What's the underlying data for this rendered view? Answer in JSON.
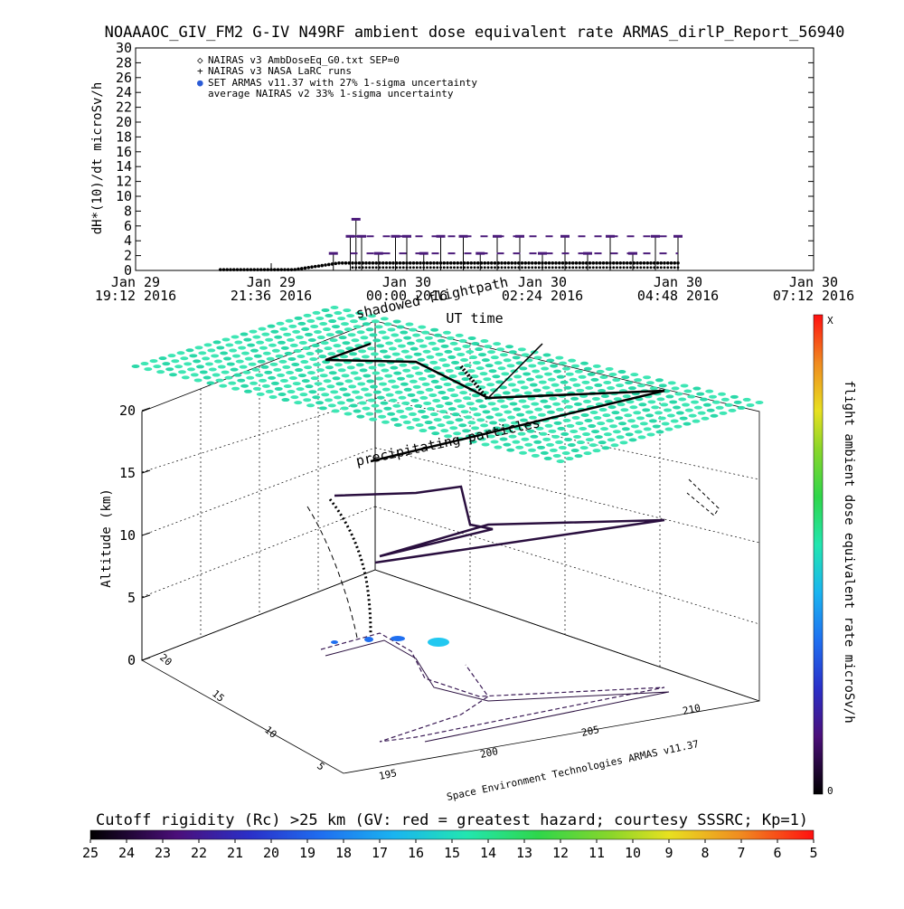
{
  "header": {
    "title": "NOAAAOC_GIV_FM2 G-IV   N49RF  ambient dose equivalent rate ARMAS_dirlP_Report_56940"
  },
  "chart_data": [
    {
      "type": "scatter",
      "title": "NOAAAOC_GIV_FM2 G-IV   N49RF  ambient dose equivalent rate ARMAS_dirlP_Report_56940",
      "ylabel": "dH*(10)/dt microSv/h",
      "xlabel": "UT time",
      "ylim": [
        0,
        30
      ],
      "yticks": [
        "0",
        "2",
        "4",
        "6",
        "8",
        "10",
        "12",
        "14",
        "16",
        "18",
        "20",
        "22",
        "24",
        "26",
        "28",
        "30"
      ],
      "xticks": [
        {
          "line1": "Jan 29",
          "line2": "19:12 2016"
        },
        {
          "line1": "Jan 29",
          "line2": "21:36 2016"
        },
        {
          "line1": "Jan 30",
          "line2": "00:00 2016"
        },
        {
          "line1": "Jan 30",
          "line2": "02:24 2016"
        },
        {
          "line1": "Jan 30",
          "line2": "04:48 2016"
        },
        {
          "line1": "Jan 30",
          "line2": "07:12 2016"
        }
      ],
      "xlim_hours": [
        19.2,
        31.2
      ],
      "legend": [
        {
          "symbol": "◇",
          "label": "NAIRAS v3 AmbDoseEq_G0.txt SEP=0"
        },
        {
          "symbol": "+",
          "label": "NAIRAS v3 NASA LaRC runs"
        },
        {
          "symbol": "●",
          "label": "SET ARMAS v11.37 with 27% 1-sigma uncertainty",
          "color": "#2b5bd6"
        },
        {
          "symbol": "",
          "label": "average NAIRAS v2 33% 1-sigma uncertainty"
        }
      ],
      "legend_position": "top-left",
      "series": [
        {
          "name": "NAIRAS v3 AmbDoseEq_G0.txt SEP=0",
          "x_hours": [
            20.7,
            21.5,
            22.2,
            22.6,
            23.0,
            24.0,
            25.0,
            26.0,
            27.0,
            28.0,
            28.8
          ],
          "values": [
            0.1,
            0.2,
            0.3,
            0.9,
            1.0,
            1.0,
            1.0,
            1.0,
            1.0,
            1.0,
            1.0
          ]
        },
        {
          "name": "SET ARMAS v11.37 with 27% 1-sigma uncertainty",
          "x_hours": [
            22.7,
            23.0,
            23.1,
            23.2,
            23.5,
            23.8,
            24.0,
            24.3,
            24.6,
            25.0,
            25.3,
            25.6,
            26.0,
            26.4,
            26.8,
            27.2,
            27.6,
            28.0,
            28.4,
            28.8
          ],
          "values": [
            2.3,
            4.6,
            6.9,
            4.6,
            2.3,
            4.6,
            4.6,
            2.3,
            4.6,
            4.6,
            2.3,
            4.6,
            4.6,
            2.3,
            4.6,
            2.3,
            4.6,
            2.3,
            4.6,
            4.6
          ]
        }
      ]
    },
    {
      "type": "scatter",
      "title": "",
      "ylabel": "Altitude (km)",
      "zlim": [
        0,
        20
      ],
      "zticks": [
        "0",
        "5",
        "10",
        "15",
        "20"
      ],
      "lat_ticks": [
        "5",
        "10",
        "15",
        "20"
      ],
      "lon_ticks": [
        "195",
        "200",
        "205",
        "210"
      ],
      "annotations": [
        "shadowed flightpath",
        "precipitating particles",
        "Space Environment Technologies ARMAS v11.37"
      ]
    }
  ],
  "colorbar_right": {
    "label": "flight ambient dose equivalent rate microSv/h",
    "top": "X",
    "bottom": "0"
  },
  "colorbar_bottom": {
    "label": "Cutoff rigidity (Rc) >25 km (GV: red = greatest hazard; courtesy SSSRC; Kp=1)",
    "ticks": [
      "25",
      "24",
      "23",
      "22",
      "21",
      "20",
      "19",
      "18",
      "17",
      "16",
      "15",
      "14",
      "13",
      "12",
      "11",
      "10",
      "9",
      "8",
      "7",
      "6",
      "5"
    ]
  }
}
